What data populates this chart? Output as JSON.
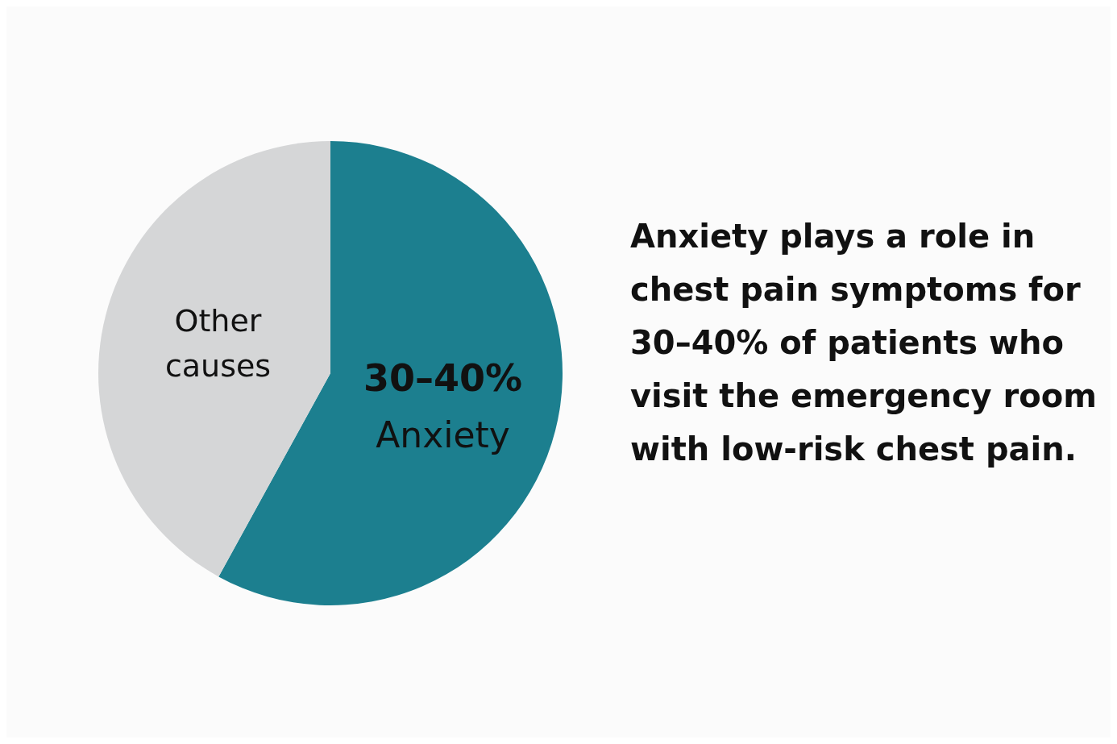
{
  "chart_data": {
    "type": "pie",
    "categories": [
      "Anxiety",
      "Other causes"
    ],
    "values": [
      58,
      42
    ],
    "colors": [
      "#1c7f8f",
      "#d5d6d7"
    ],
    "annotations": [
      {
        "text": "30–40%",
        "x": "Anxiety"
      },
      "Anxiety plays a role in chest pain symptoms for 30–40% of patients who visit the emergency room with low-risk chest pain."
    ]
  }
}
